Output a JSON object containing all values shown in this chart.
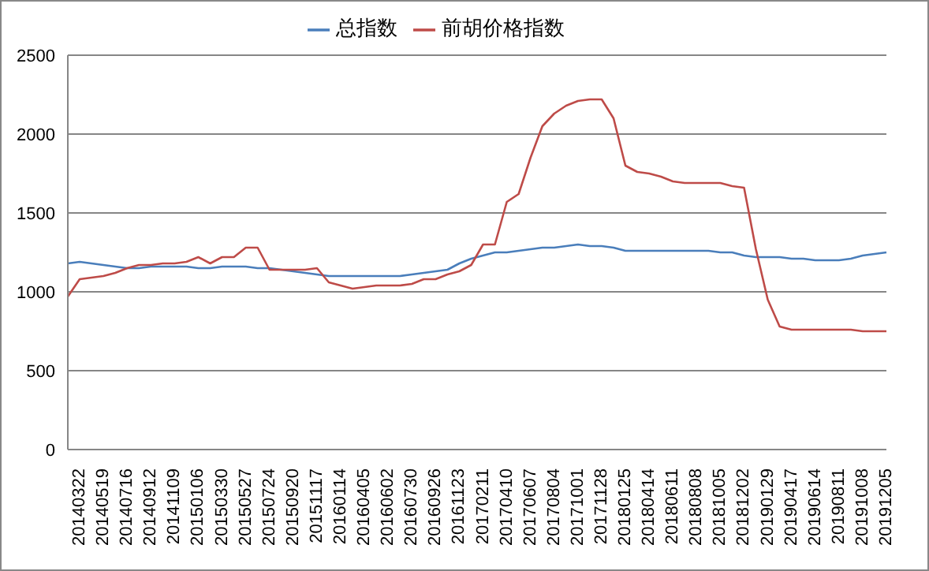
{
  "chart_data": {
    "type": "line",
    "categories": [
      null,
      "20140322",
      null,
      "20140519",
      null,
      "20140716",
      null,
      "20140912",
      null,
      "20141109",
      null,
      "20150106",
      null,
      "20150330",
      null,
      "20150527",
      null,
      "20150724",
      null,
      "20150920",
      null,
      "20151117",
      null,
      "20160114",
      null,
      "20160405",
      null,
      "20160602",
      null,
      "20160730",
      null,
      "20160926",
      null,
      "20161123",
      null,
      "20170211",
      null,
      "20170410",
      null,
      "20170607",
      null,
      "20170804",
      null,
      "20171001",
      null,
      "20171128",
      null,
      "20180125",
      null,
      "20180414",
      null,
      "20180611",
      null,
      "20180808",
      null,
      "20181005",
      null,
      "20181202",
      null,
      "20190129",
      null,
      "20190417",
      null,
      "20190614",
      null,
      "20190811",
      null,
      "20191008",
      null,
      "20191205"
    ],
    "series": [
      {
        "name": "总指数",
        "color": "#4a7ebb",
        "values": [
          1180,
          1190,
          1180,
          1170,
          1160,
          1150,
          1150,
          1160,
          1160,
          1160,
          1160,
          1150,
          1150,
          1160,
          1160,
          1160,
          1150,
          1150,
          1140,
          1130,
          1120,
          1110,
          1100,
          1100,
          1100,
          1100,
          1100,
          1100,
          1100,
          1110,
          1120,
          1130,
          1140,
          1180,
          1210,
          1230,
          1250,
          1250,
          1260,
          1270,
          1280,
          1280,
          1290,
          1300,
          1290,
          1290,
          1280,
          1260,
          1260,
          1260,
          1260,
          1260,
          1260,
          1260,
          1260,
          1250,
          1250,
          1230,
          1220,
          1220,
          1220,
          1210,
          1210,
          1200,
          1200,
          1200,
          1210,
          1230,
          1240,
          1250
        ]
      },
      {
        "name": "前胡价格指数",
        "color": "#be4b48",
        "values": [
          970,
          1080,
          1090,
          1100,
          1120,
          1150,
          1170,
          1170,
          1180,
          1180,
          1190,
          1220,
          1180,
          1220,
          1220,
          1280,
          1280,
          1140,
          1140,
          1140,
          1140,
          1150,
          1060,
          1040,
          1020,
          1030,
          1040,
          1040,
          1040,
          1050,
          1080,
          1080,
          1110,
          1130,
          1170,
          1300,
          1300,
          1570,
          1620,
          1850,
          2050,
          2130,
          2180,
          2210,
          2220,
          2220,
          2100,
          1800,
          1760,
          1750,
          1730,
          1700,
          1690,
          1690,
          1690,
          1690,
          1670,
          1660,
          1270,
          950,
          780,
          760,
          760,
          760,
          760,
          760,
          760,
          750,
          750,
          750
        ]
      }
    ],
    "ylim": [
      0,
      2500
    ],
    "yticks": [
      0,
      500,
      1000,
      1500,
      2000,
      2500
    ],
    "grid": "y",
    "legend": "top"
  }
}
